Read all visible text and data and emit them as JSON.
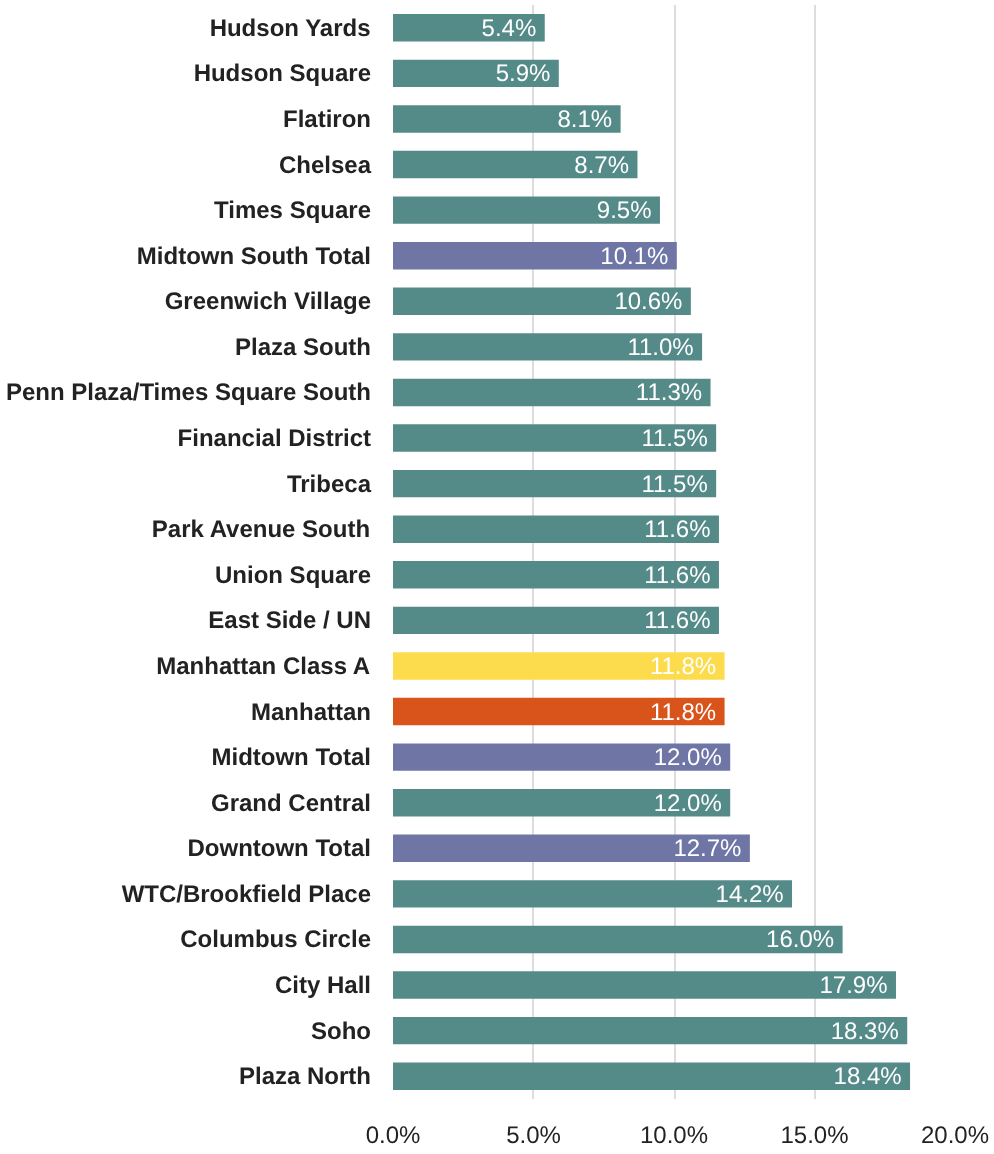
{
  "chart_data": {
    "type": "bar",
    "orientation": "horizontal",
    "categories": [
      "Hudson Yards",
      "Hudson Square",
      "Flatiron",
      "Chelsea",
      "Times Square",
      "Midtown South Total",
      "Greenwich Village",
      "Plaza South",
      "Penn Plaza/Times Square South",
      "Financial District",
      "Tribeca",
      "Park Avenue South",
      "Union Square",
      "East Side / UN",
      "Manhattan Class A",
      "Manhattan",
      "Midtown Total",
      "Grand Central",
      "Downtown Total",
      "WTC/Brookfield Place",
      "Columbus Circle",
      "City Hall",
      "Soho",
      "Plaza North"
    ],
    "values": [
      5.4,
      5.9,
      8.1,
      8.7,
      9.5,
      10.1,
      10.6,
      11.0,
      11.3,
      11.5,
      11.5,
      11.6,
      11.6,
      11.6,
      11.8,
      11.8,
      12.0,
      12.0,
      12.7,
      14.2,
      16.0,
      17.9,
      18.3,
      18.4
    ],
    "value_labels": [
      "5.4%",
      "5.9%",
      "8.1%",
      "8.7%",
      "9.5%",
      "10.1%",
      "10.6%",
      "11.0%",
      "11.3%",
      "11.5%",
      "11.5%",
      "11.6%",
      "11.6%",
      "11.6%",
      "11.8%",
      "11.8%",
      "12.0%",
      "12.0%",
      "12.7%",
      "14.2%",
      "16.0%",
      "17.9%",
      "18.3%",
      "18.4%"
    ],
    "colors": [
      "#548b89",
      "#548b89",
      "#548b89",
      "#548b89",
      "#548b89",
      "#6f76a6",
      "#548b89",
      "#548b89",
      "#548b89",
      "#548b89",
      "#548b89",
      "#548b89",
      "#548b89",
      "#548b89",
      "#fcdc4d",
      "#d9541a",
      "#6f76a6",
      "#548b89",
      "#6f76a6",
      "#548b89",
      "#548b89",
      "#548b89",
      "#548b89",
      "#548b89"
    ],
    "xlim": [
      0,
      20
    ],
    "xticks": [
      {
        "value": 0,
        "label": "0.0%"
      },
      {
        "value": 5,
        "label": "5.0%"
      },
      {
        "value": 10,
        "label": "10.0%"
      },
      {
        "value": 15,
        "label": "15.0%"
      },
      {
        "value": 20,
        "label": "20.0%"
      }
    ],
    "grid": "x"
  }
}
